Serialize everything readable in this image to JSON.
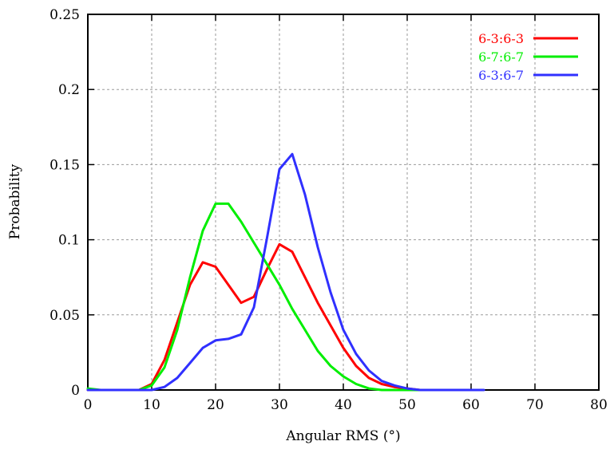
{
  "chart_data": {
    "type": "line",
    "title": "",
    "xlabel": "Angular RMS (°)",
    "ylabel": "Probability",
    "xlim": [
      0,
      80
    ],
    "ylim": [
      0,
      0.25
    ],
    "xticks": [
      0,
      10,
      20,
      30,
      40,
      50,
      60,
      70,
      80
    ],
    "xtick_labels": [
      "0",
      "10",
      "20",
      "30",
      "40",
      "50",
      "60",
      "70",
      "80"
    ],
    "yticks": [
      0,
      0.05,
      0.1,
      0.15,
      0.2,
      0.25
    ],
    "ytick_labels": [
      "0",
      "0.05",
      "0.1",
      "0.15",
      "0.2",
      "0.25"
    ],
    "grid": true,
    "legend_position": "top-right",
    "series": [
      {
        "name": "6-3:6-3",
        "color": "#ff0000",
        "x": [
          0,
          2,
          4,
          6,
          8,
          10,
          12,
          14,
          16,
          18,
          20,
          22,
          24,
          26,
          28,
          30,
          32,
          34,
          36,
          38,
          40,
          42,
          44,
          46,
          48,
          50,
          52,
          54,
          56,
          58,
          60
        ],
        "y": [
          0,
          0,
          0,
          0,
          0,
          0.004,
          0.02,
          0.045,
          0.07,
          0.085,
          0.082,
          0.07,
          0.058,
          0.062,
          0.08,
          0.097,
          0.092,
          0.075,
          0.058,
          0.043,
          0.028,
          0.016,
          0.008,
          0.004,
          0.002,
          0.001,
          0,
          0,
          0,
          0,
          0
        ]
      },
      {
        "name": "6-7:6-7",
        "color": "#00ee00",
        "x": [
          0,
          2,
          4,
          6,
          8,
          10,
          12,
          14,
          16,
          18,
          20,
          22,
          24,
          26,
          28,
          30,
          32,
          34,
          36,
          38,
          40,
          42,
          44,
          46,
          48,
          50,
          52,
          54,
          56,
          58,
          60
        ],
        "y": [
          0.001,
          0,
          0,
          0,
          0,
          0.003,
          0.015,
          0.04,
          0.075,
          0.106,
          0.124,
          0.124,
          0.112,
          0.098,
          0.084,
          0.07,
          0.054,
          0.04,
          0.026,
          0.016,
          0.009,
          0.004,
          0.001,
          0,
          0,
          0,
          0,
          0,
          0,
          0,
          0
        ]
      },
      {
        "name": "6-3:6-7",
        "color": "#3030ff",
        "x": [
          0,
          2,
          4,
          6,
          8,
          10,
          12,
          14,
          16,
          18,
          20,
          22,
          24,
          26,
          28,
          30,
          32,
          34,
          36,
          38,
          40,
          42,
          44,
          46,
          48,
          50,
          52,
          54,
          56,
          58,
          60,
          62
        ],
        "y": [
          0,
          0,
          0,
          0,
          0,
          0,
          0.002,
          0.008,
          0.018,
          0.028,
          0.033,
          0.034,
          0.037,
          0.055,
          0.1,
          0.147,
          0.157,
          0.13,
          0.095,
          0.065,
          0.04,
          0.024,
          0.013,
          0.006,
          0.003,
          0.001,
          0,
          0,
          0,
          0,
          0,
          0
        ]
      }
    ]
  }
}
